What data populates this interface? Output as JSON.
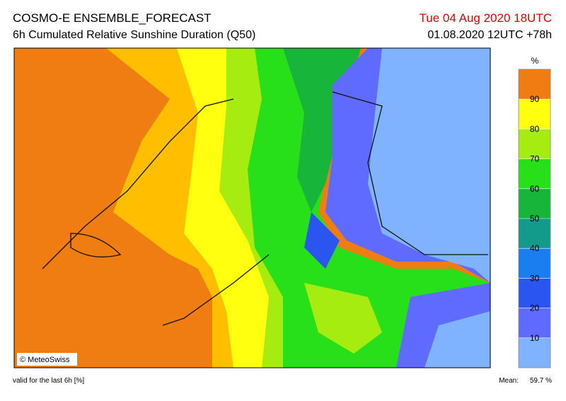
{
  "header": {
    "title": "COSMO-E ENSEMBLE_FORECAST",
    "subtitle": "6h Cumulated Relative Sunshine Duration (Q50)",
    "valid_time": "Tue 04 Aug 2020 18UTC",
    "run_time": "01.08.2020 12UTC +78h"
  },
  "map": {
    "copyright": "© MeteoSwiss"
  },
  "colorbar": {
    "unit": "%",
    "lim": [
      0,
      100
    ],
    "ticks": [
      10,
      20,
      30,
      40,
      50,
      60,
      70,
      80,
      90
    ],
    "colors": [
      "#7fb2ff",
      "#5f6bff",
      "#2a55f0",
      "#1a7ef0",
      "#129a8a",
      "#17b53a",
      "#28e01a",
      "#a6ec10",
      "#ffff10",
      "#ffbf00",
      "#f07d12"
    ]
  },
  "footer": {
    "note": "valid for the last 6h [%]",
    "mean_label": "Mean:",
    "mean_value": "59.7 %"
  }
}
